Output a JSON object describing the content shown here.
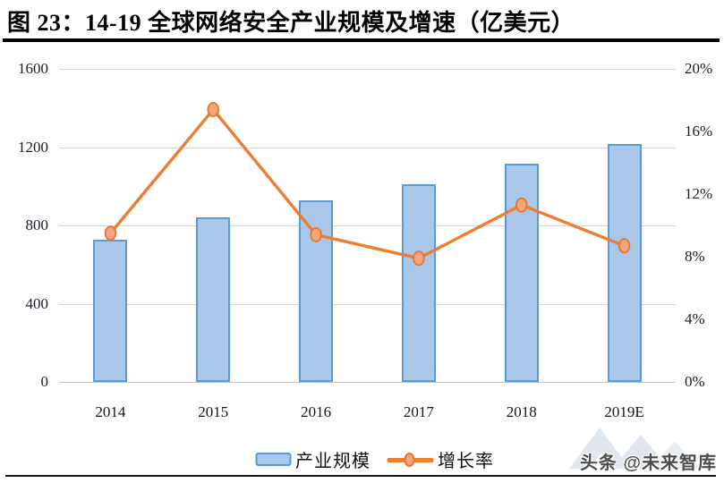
{
  "title": "图 23：14-19  全球网络安全产业规模及增速（亿美元）",
  "chart_data": {
    "type": "combo bar+line, dual axis",
    "categories": [
      "2014",
      "2015",
      "2016",
      "2017",
      "2018",
      "2019E"
    ],
    "series": [
      {
        "name": "产业规模",
        "type": "bar",
        "axis": "left",
        "unit": "亿美元",
        "values": [
          725,
          840,
          930,
          1010,
          1115,
          1215
        ],
        "fill": "#A9C7E9",
        "border": "#5B9BD5"
      },
      {
        "name": "增长率",
        "type": "line",
        "axis": "right",
        "unit": "%",
        "values": [
          9.5,
          17.4,
          9.4,
          7.9,
          11.3,
          8.7
        ],
        "line_color": "#ED7D31",
        "marker_fill": "#F4A579",
        "marker_border": "#E8732E"
      }
    ],
    "left_axis": {
      "min": 0,
      "max": 1600,
      "ticks": [
        "1600",
        "1200",
        "800",
        "400",
        "0"
      ]
    },
    "right_axis": {
      "min": 0,
      "max": 20,
      "ticks": [
        "20%",
        "16%",
        "12%",
        "8%",
        "4%",
        "0%"
      ]
    },
    "legend": [
      {
        "label": "产业规模"
      },
      {
        "label": "增长率"
      }
    ],
    "grid": true,
    "gridline_color": "#D8D8D8",
    "legend_position": "bottom"
  },
  "watermark": {
    "text": "头条 @未来智库",
    "logo": "mountain-logo-icon",
    "logo_color": "#C7D5E2"
  }
}
